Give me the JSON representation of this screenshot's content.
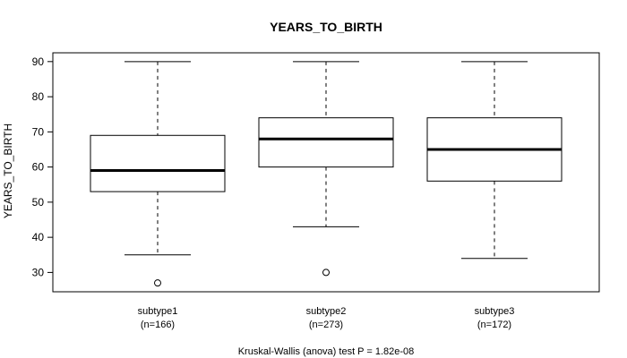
{
  "chart_data": {
    "type": "boxplot",
    "title": "YEARS_TO_BIRTH",
    "ylabel": "YEARS_TO_BIRTH",
    "xlabel": "",
    "ylim": [
      24.5,
      92.5
    ],
    "yticks": [
      30,
      40,
      50,
      60,
      70,
      80,
      90
    ],
    "categories": [
      "subtype1",
      "subtype2",
      "subtype3"
    ],
    "category_counts": [
      "(n=166)",
      "(n=273)",
      "(n=172)"
    ],
    "boxes": [
      {
        "name": "subtype1",
        "whisker_low": 35,
        "q1": 53,
        "median": 59,
        "q3": 69,
        "whisker_high": 90,
        "outliers": [
          27
        ]
      },
      {
        "name": "subtype2",
        "whisker_low": 43,
        "q1": 60,
        "median": 68,
        "q3": 74,
        "whisker_high": 90,
        "outliers": [
          30
        ]
      },
      {
        "name": "subtype3",
        "whisker_low": 34,
        "q1": 56,
        "median": 65,
        "q3": 74,
        "whisker_high": 90,
        "outliers": []
      }
    ],
    "footnote": "Kruskal-Wallis (anova) test P = 1.82e-08",
    "grid": false,
    "legend": "none",
    "colors": {
      "background": "#ffffff",
      "foreground": "#000000"
    }
  }
}
